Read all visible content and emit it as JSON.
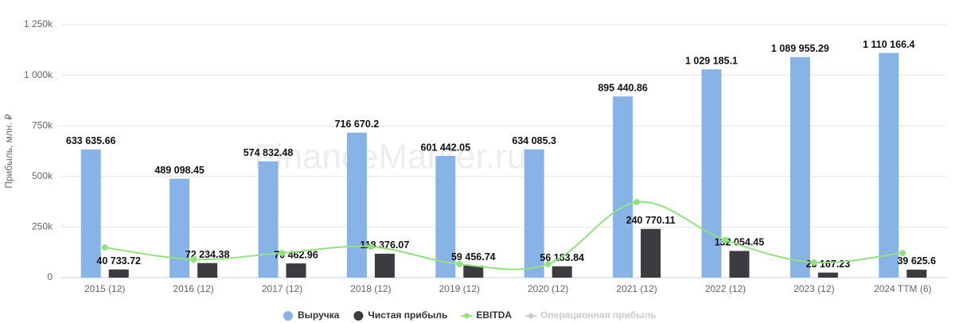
{
  "chart_data": {
    "type": "bar_line",
    "watermark": "FinanceMarker.ru",
    "y_label": "Прибыль, млн. ₽",
    "categories": [
      "2015 (12)",
      "2016 (12)",
      "2017 (12)",
      "2018 (12)",
      "2019 (12)",
      "2020 (12)",
      "2021 (12)",
      "2022 (12)",
      "2023 (12)",
      "2024 TTM (6)"
    ],
    "series": [
      {
        "name": "Выручка",
        "color": "#88b3e6",
        "kind": "bar",
        "values": [
          633635.66,
          489098.45,
          574832.48,
          716670.2,
          601442.05,
          634085.3,
          895440.86,
          1029185.1,
          1089955.29,
          1110166.4
        ],
        "value_labels": [
          "633 635.66",
          "489 098.45",
          "574 832.48",
          "716 670.2",
          "601 442.05",
          "634 085.3",
          "895 440.86",
          "1 029 185.1",
          "1 089 955.29",
          "1 110 166.4"
        ]
      },
      {
        "name": "Чистая прибыль",
        "color": "#3c3c40",
        "kind": "bar",
        "values": [
          40733.72,
          72234.38,
          70462.96,
          118376.07,
          59456.74,
          56183.84,
          240770.11,
          132054.45,
          25167.23,
          39625.6
        ],
        "value_labels": [
          "40 733.72",
          "72 234.38",
          "70 462.96",
          "118 376.07",
          "59 456.74",
          "56 183.84",
          "240 770.11",
          "132 054.45",
          "25 167.23",
          "39 625.6"
        ]
      },
      {
        "name": "EBITDA",
        "color": "#92e27f",
        "kind": "line",
        "values": [
          149000,
          90000,
          122000,
          153000,
          67000,
          67000,
          373000,
          185000,
          75000,
          122000
        ]
      }
    ],
    "hidden_series": [
      {
        "name": "Операционная прибыль",
        "color": "#cccccc"
      }
    ],
    "ylim": [
      0,
      1250000
    ],
    "yticks": [
      0,
      {
        "value": 250000,
        "label": "250k"
      },
      {
        "value": 500000,
        "label": "500k"
      },
      {
        "value": 750000,
        "label": "750k"
      },
      {
        "value": 1000000,
        "label": "1 000k"
      },
      {
        "value": 1250000,
        "label": "1 250k"
      }
    ],
    "grid": true
  }
}
